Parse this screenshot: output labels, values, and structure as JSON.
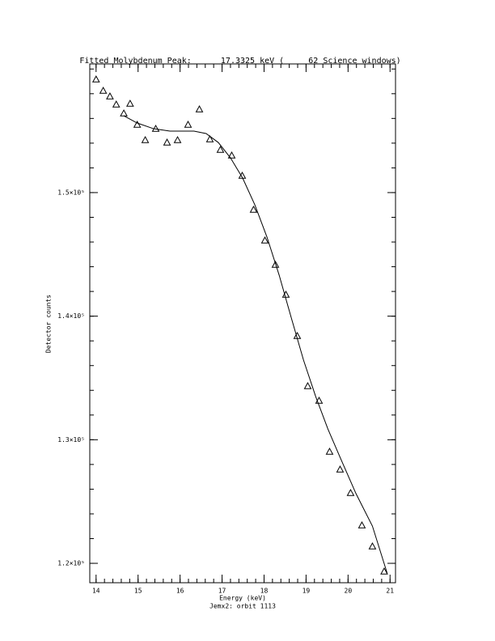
{
  "chart_data": {
    "type": "scatter",
    "title": "Fitted Molybdenum Peak:      17.3325 keV (     62 Science windows)",
    "xlabel": "Energy (keV)",
    "subtitle": "Jemx2: orbit 1113",
    "ylabel": "Detector counts",
    "xlim": [
      13.85,
      21.13
    ],
    "ylim": [
      118430,
      160410
    ],
    "xticks": [
      14,
      15,
      16,
      17,
      18,
      19,
      20,
      21
    ],
    "yticks": [
      {
        "value": 120000,
        "label": "1.2×10⁵"
      },
      {
        "value": 130000,
        "label": "1.3×10⁵"
      },
      {
        "value": 140000,
        "label": "1.4×10⁵"
      },
      {
        "value": 150000,
        "label": "1.5×10⁵"
      }
    ],
    "minor": 5,
    "color": "#000000",
    "series": [
      {
        "marker": "triangle",
        "x": [
          14.0,
          14.17,
          14.33,
          14.48,
          14.66,
          14.81,
          14.98,
          15.17,
          15.42,
          15.69,
          15.94,
          16.19,
          16.46,
          16.71,
          16.96,
          17.23,
          17.48,
          17.75,
          18.02,
          18.27,
          18.52,
          18.79,
          19.04,
          19.31,
          19.56,
          19.81,
          20.06,
          20.33,
          20.58,
          20.86
        ],
        "values": [
          159160,
          158245,
          157787,
          157132,
          156411,
          157197,
          155495,
          154250,
          155167,
          154054,
          154250,
          155495,
          156739,
          154316,
          153464,
          153006,
          151369,
          148618,
          146130,
          144165,
          141742,
          138402,
          134342,
          133163,
          129037,
          127597,
          125697,
          123078,
          121375,
          119345
        ]
      },
      {
        "marker": "line",
        "x": [
          14.66,
          14.98,
          15.37,
          15.76,
          16.33,
          16.62,
          16.91,
          17.2,
          17.49,
          17.78,
          18.07,
          18.36,
          18.65,
          18.94,
          19.23,
          19.52,
          19.81,
          20.19,
          20.58,
          20.93
        ],
        "values": [
          156214,
          155627,
          155168,
          154972,
          154972,
          154776,
          154055,
          152811,
          151174,
          149012,
          146393,
          143314,
          139843,
          136438,
          133491,
          130871,
          128579,
          125632,
          123012,
          119214
        ]
      }
    ]
  }
}
